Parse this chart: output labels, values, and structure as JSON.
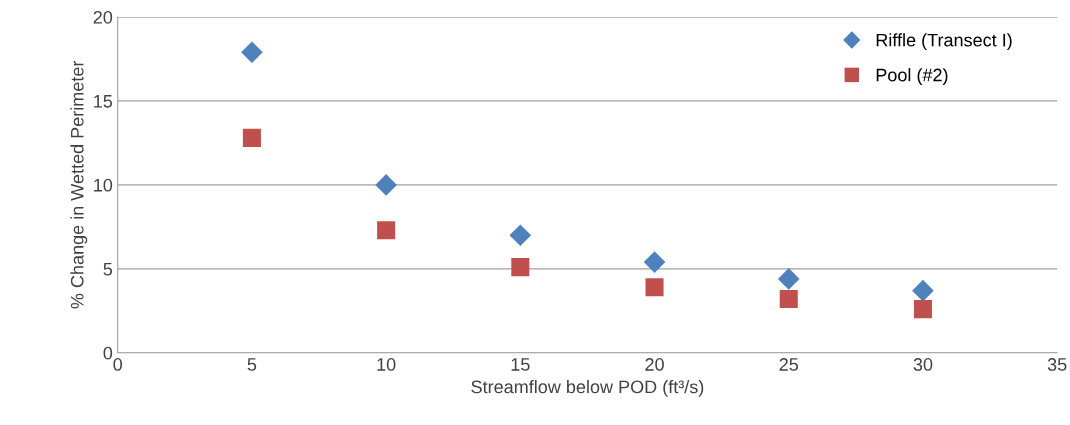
{
  "chart_data": {
    "type": "scatter",
    "xlabel": "Streamflow below POD (ft³/s)",
    "ylabel": "% Change in Wetted Perimeter",
    "x": [
      5,
      10,
      15,
      20,
      25,
      30
    ],
    "series": [
      {
        "name": "Riffle (Transect I)",
        "color": "#4f81bd",
        "marker": "diamond",
        "values": [
          17.9,
          10.0,
          7.0,
          5.4,
          4.4,
          3.7
        ]
      },
      {
        "name": "Pool (#2)",
        "color": "#c0504d",
        "marker": "square",
        "values": [
          12.8,
          7.3,
          5.1,
          3.9,
          3.2,
          2.6
        ]
      }
    ],
    "xlim": [
      0,
      35
    ],
    "xticks": [
      0,
      5,
      10,
      15,
      20,
      25,
      30,
      35
    ],
    "ylim": [
      0,
      20
    ],
    "yticks": [
      0,
      5,
      10,
      15,
      20
    ],
    "grid": "y",
    "legend": "top right"
  }
}
